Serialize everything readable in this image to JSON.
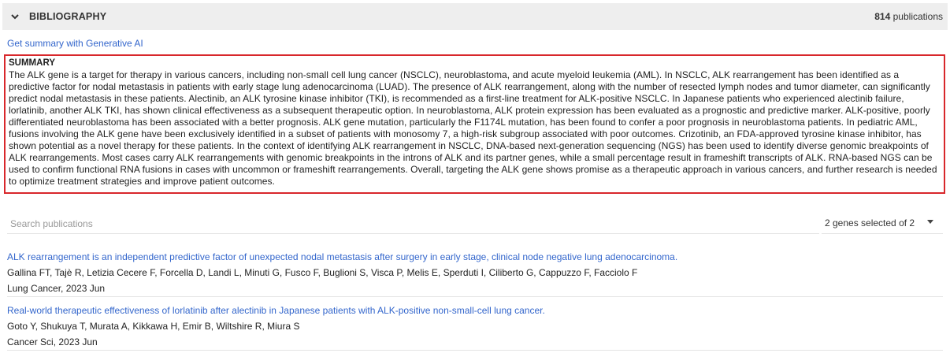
{
  "header": {
    "title": "BIBLIOGRAPHY",
    "count": "814",
    "count_suffix": "publications"
  },
  "ai_link": "Get summary with Generative AI",
  "summary": {
    "title": "SUMMARY",
    "text": "The ALK gene is a target for therapy in various cancers, including non-small cell lung cancer (NSCLC), neuroblastoma, and acute myeloid leukemia (AML). In NSCLC, ALK rearrangement has been identified as a predictive factor for nodal metastasis in patients with early stage lung adenocarcinoma (LUAD). The presence of ALK rearrangement, along with the number of resected lymph nodes and tumor diameter, can significantly predict nodal metastasis in these patients. Alectinib, an ALK tyrosine kinase inhibitor (TKI), is recommended as a first-line treatment for ALK-positive NSCLC. In Japanese patients who experienced alectinib failure, lorlatinib, another ALK TKI, has shown clinical effectiveness as a subsequent therapeutic option. In neuroblastoma, ALK protein expression has been evaluated as a prognostic and predictive marker. ALK-positive, poorly differentiated neuroblastoma has been associated with a better prognosis. ALK gene mutation, particularly the F1174L mutation, has been found to confer a poor prognosis in neuroblastoma patients. In pediatric AML, fusions involving the ALK gene have been exclusively identified in a subset of patients with monosomy 7, a high-risk subgroup associated with poor outcomes. Crizotinib, an FDA-approved tyrosine kinase inhibitor, has shown potential as a novel therapy for these patients. In the context of identifying ALK rearrangement in NSCLC, DNA-based next-generation sequencing (NGS) has been used to identify diverse genomic breakpoints of ALK rearrangements. Most cases carry ALK rearrangements with genomic breakpoints in the introns of ALK and its partner genes, while a small percentage result in frameshift transcripts of ALK. RNA-based NGS can be used to confirm functional RNA fusions in cases with uncommon or frameshift rearrangements. Overall, targeting the ALK gene shows promise as a therapeutic approach in various cancers, and further research is needed to optimize treatment strategies and improve patient outcomes."
  },
  "search": {
    "placeholder": "Search publications",
    "value": ""
  },
  "genes_filter": {
    "selected": "2 genes selected of 2"
  },
  "publications": [
    {
      "title": "ALK rearrangement is an independent predictive factor of unexpected nodal metastasis after surgery in early stage, clinical node negative lung adenocarcinoma.",
      "authors": "Gallina FT,  Tajè R,  Letizia Cecere F,  Forcella D,  Landi L,  Minuti G,  Fusco F,  Buglioni S,  Visca P,  Melis E,  Sperduti I,  Ciliberto G,  Cappuzzo F,  Facciolo F",
      "journal": "Lung Cancer,  2023 Jun"
    },
    {
      "title": "Real-world therapeutic effectiveness of lorlatinib after alectinib in Japanese patients with ALK-positive non-small-cell lung cancer.",
      "authors": "Goto Y,  Shukuya T,  Murata A,  Kikkawa H,  Emir B,  Wiltshire R,  Miura S",
      "journal": "Cancer Sci,  2023 Jun"
    }
  ]
}
